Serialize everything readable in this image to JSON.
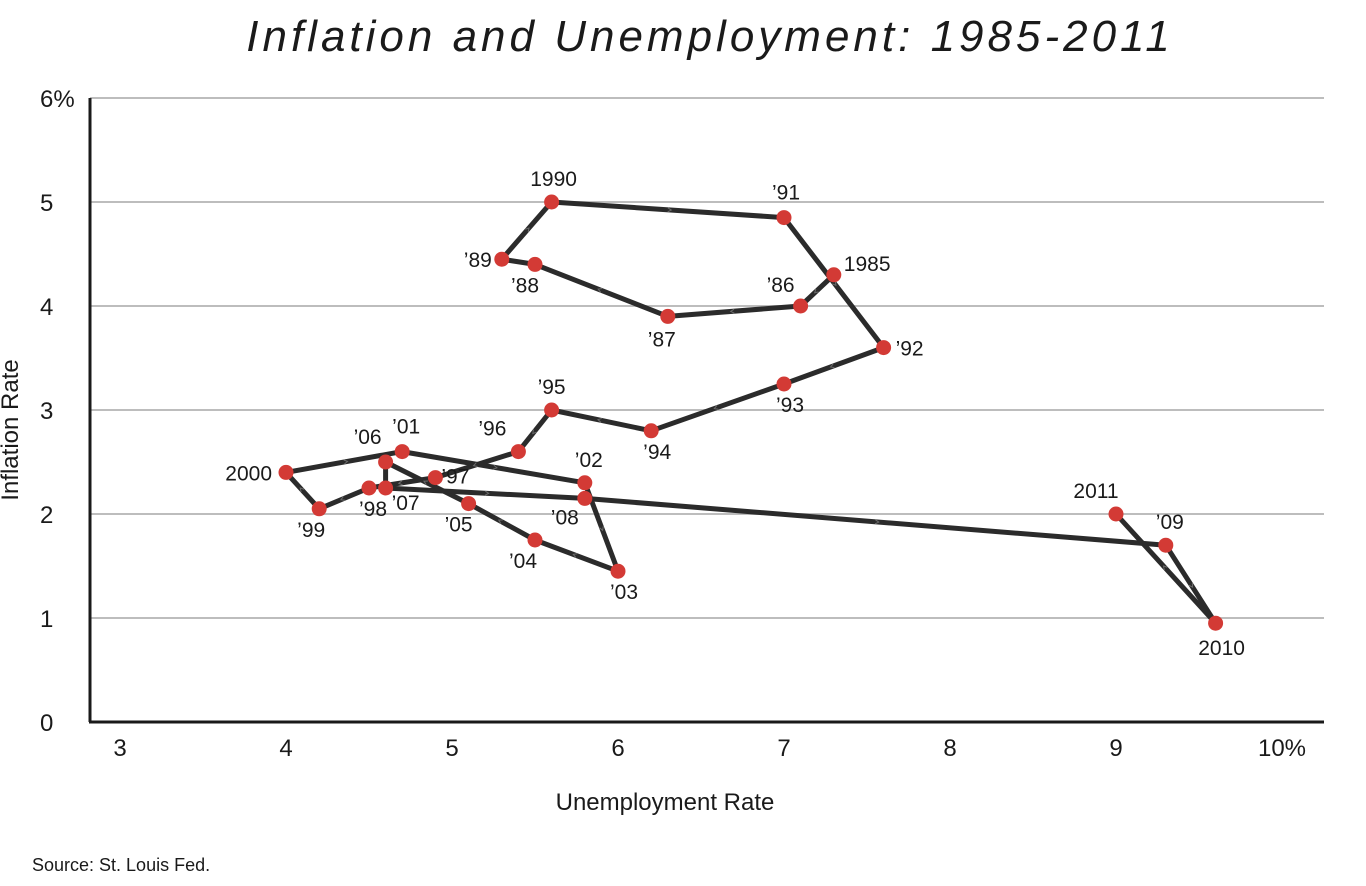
{
  "chart_data": {
    "type": "line",
    "title": "Inflation and Unemployment: 1985-2011",
    "xlabel": "Unemployment Rate",
    "ylabel": "Inflation Rate",
    "xlim": [
      3,
      10
    ],
    "ylim": [
      0,
      6
    ],
    "x_ticks": [
      {
        "value": 3,
        "label": "3"
      },
      {
        "value": 4,
        "label": "4"
      },
      {
        "value": 5,
        "label": "5"
      },
      {
        "value": 6,
        "label": "6"
      },
      {
        "value": 7,
        "label": "7"
      },
      {
        "value": 8,
        "label": "8"
      },
      {
        "value": 9,
        "label": "9"
      },
      {
        "value": 10,
        "label": "10%"
      }
    ],
    "y_ticks": [
      {
        "value": 0,
        "label": "0"
      },
      {
        "value": 1,
        "label": "1"
      },
      {
        "value": 2,
        "label": "2"
      },
      {
        "value": 3,
        "label": "3"
      },
      {
        "value": 4,
        "label": "4"
      },
      {
        "value": 5,
        "label": "5"
      },
      {
        "value": 6,
        "label": "6%"
      }
    ],
    "grid": "horizontal",
    "line_color": "#2b2b2b",
    "point_color": "#d33a35",
    "arrow_color": "#6a6a6a",
    "points": [
      {
        "label": "1985",
        "x": 7.3,
        "y": 4.3
      },
      {
        "label": "’86",
        "x": 7.1,
        "y": 4.0
      },
      {
        "label": "’87",
        "x": 6.3,
        "y": 3.9
      },
      {
        "label": "’88",
        "x": 5.5,
        "y": 4.4
      },
      {
        "label": "’89",
        "x": 5.3,
        "y": 4.45
      },
      {
        "label": "1990",
        "x": 5.6,
        "y": 5.0
      },
      {
        "label": "’91",
        "x": 7.0,
        "y": 4.85
      },
      {
        "label": "’92",
        "x": 7.6,
        "y": 3.6
      },
      {
        "label": "’93",
        "x": 7.0,
        "y": 3.25
      },
      {
        "label": "’94",
        "x": 6.2,
        "y": 2.8
      },
      {
        "label": "’95",
        "x": 5.6,
        "y": 3.0
      },
      {
        "label": "’96",
        "x": 5.4,
        "y": 2.6
      },
      {
        "label": "’97",
        "x": 4.9,
        "y": 2.35
      },
      {
        "label": "’98",
        "x": 4.5,
        "y": 2.25
      },
      {
        "label": "’99",
        "x": 4.2,
        "y": 2.05
      },
      {
        "label": "2000",
        "x": 4.0,
        "y": 2.4
      },
      {
        "label": "’01",
        "x": 4.7,
        "y": 2.6
      },
      {
        "label": "’02",
        "x": 5.8,
        "y": 2.3
      },
      {
        "label": "’03",
        "x": 6.0,
        "y": 1.45
      },
      {
        "label": "’04",
        "x": 5.5,
        "y": 1.75
      },
      {
        "label": "’05",
        "x": 5.1,
        "y": 2.1
      },
      {
        "label": "’06",
        "x": 4.6,
        "y": 2.5
      },
      {
        "label": "’07",
        "x": 4.6,
        "y": 2.25
      },
      {
        "label": "’08",
        "x": 5.8,
        "y": 2.15
      },
      {
        "label": "’09",
        "x": 9.3,
        "y": 1.7
      },
      {
        "label": "2010",
        "x": 9.6,
        "y": 0.95
      },
      {
        "label": "2011",
        "x": 9.0,
        "y": 2.0
      }
    ]
  },
  "source": "Source: St. Louis Fed."
}
